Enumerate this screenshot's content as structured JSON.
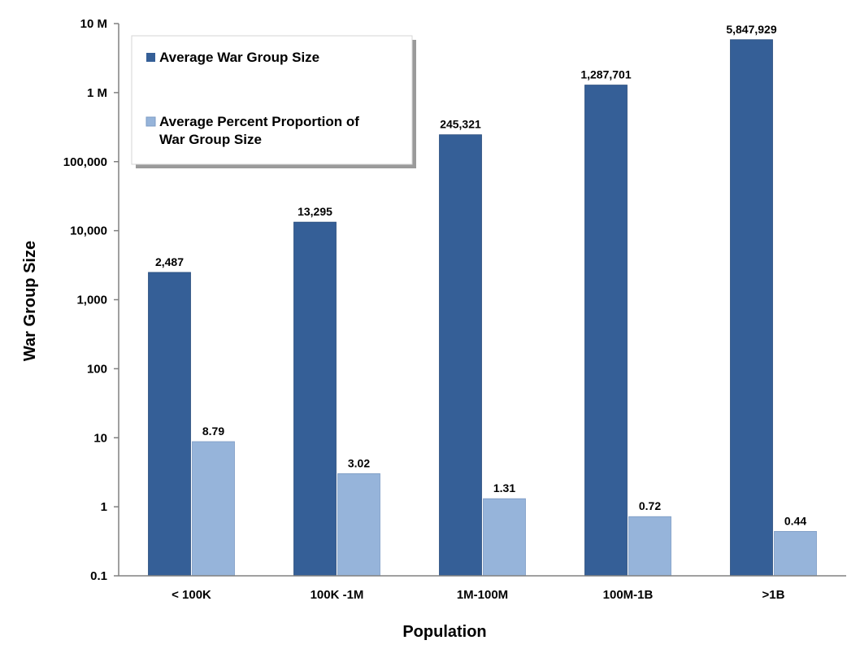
{
  "chart_data": {
    "type": "bar",
    "title": "",
    "xlabel": "Population",
    "ylabel": "War Group Size",
    "y_scale": "log",
    "ylim": [
      0.1,
      10000000
    ],
    "y_ticks": [
      {
        "value": 0.1,
        "label": "0.1"
      },
      {
        "value": 1,
        "label": "1"
      },
      {
        "value": 10,
        "label": "10"
      },
      {
        "value": 100,
        "label": "100"
      },
      {
        "value": 1000,
        "label": "1,000"
      },
      {
        "value": 10000,
        "label": "10,000"
      },
      {
        "value": 100000,
        "label": "100,000"
      },
      {
        "value": 1000000,
        "label": "1 M"
      },
      {
        "value": 10000000,
        "label": "10 M"
      }
    ],
    "categories": [
      "< 100K",
      "100K -1M",
      "1M-100M",
      "100M-1B",
      ">1B"
    ],
    "series": [
      {
        "name": "Average War Group Size",
        "color": "#355f97",
        "values": [
          2487,
          13295,
          245321,
          1287701,
          5847929
        ],
        "labels": [
          "2,487",
          "13,295",
          "245,321",
          "1,287,701",
          "5,847,929"
        ]
      },
      {
        "name": "Average Percent Proportion of War Group Size",
        "color": "#96b4da",
        "values": [
          8.79,
          3.02,
          1.31,
          0.72,
          0.44
        ],
        "labels": [
          "8.79",
          "3.02",
          "1.31",
          "0.72",
          "0.44"
        ]
      }
    ],
    "grid": false,
    "legend_position": "top-left"
  }
}
